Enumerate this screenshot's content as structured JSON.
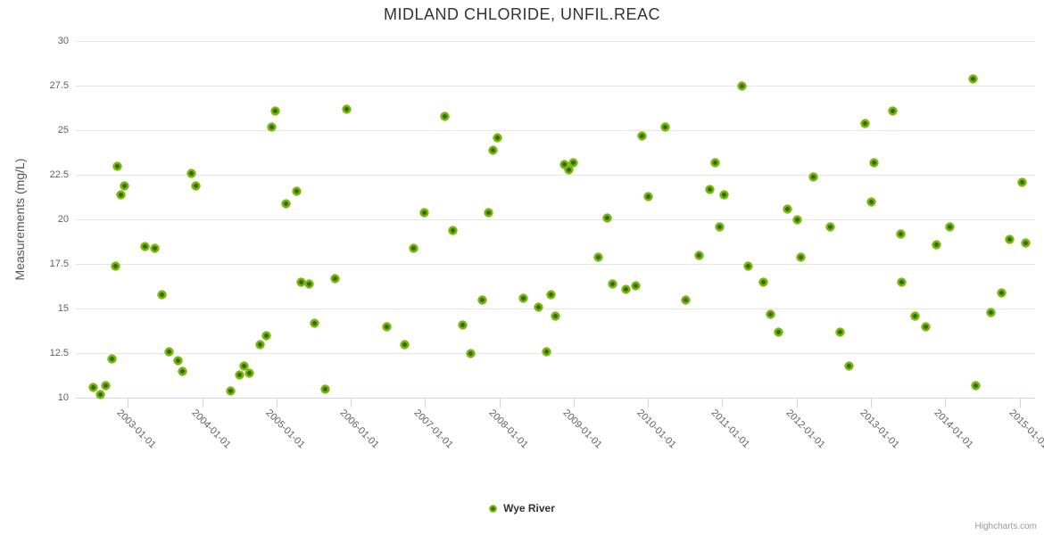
{
  "chart": {
    "title": "MIDLAND CHLORIDE, UNFIL.REAC",
    "y_axis_title": "Measurements (mg/L)",
    "legend_label": "Wye River",
    "credits": "Highcharts.com"
  },
  "colors": {
    "marker_outer": "#79b406",
    "marker_inner": "#2f6d0b",
    "grid": "#e6e6e6",
    "axis_line": "#ccd6eb",
    "title_text": "#333333",
    "axis_text": "#606060",
    "legend_text": "#333333",
    "credits_text": "#999999"
  },
  "chart_data": {
    "type": "scatter",
    "title": "MIDLAND CHLORIDE, UNFIL.REAC",
    "xlabel": "",
    "ylabel": "Measurements (mg/L)",
    "ylim": [
      10,
      30
    ],
    "y_ticks": [
      10,
      12.5,
      15,
      17.5,
      20,
      22.5,
      25,
      27.5,
      30
    ],
    "x_tick_years": [
      2003,
      2004,
      2005,
      2006,
      2007,
      2008,
      2009,
      2010,
      2011,
      2012,
      2013,
      2014,
      2015
    ],
    "x_tick_labels": [
      "2003-01-01",
      "2004-01-01",
      "2005-01-01",
      "2006-01-01",
      "2007-01-01",
      "2008-01-01",
      "2009-01-01",
      "2010-01-01",
      "2011-01-01",
      "2012-01-01",
      "2013-01-01",
      "2014-01-01",
      "2015-01-01"
    ],
    "xlim_years": [
      2002.3,
      2015.21
    ],
    "grid": true,
    "legend_position": "bottom-center",
    "series": [
      {
        "name": "Wye River",
        "marker_color": "#79b406",
        "points": [
          [
            2002.53,
            10.6
          ],
          [
            2002.63,
            10.2
          ],
          [
            2002.7,
            10.7
          ],
          [
            2002.78,
            12.2
          ],
          [
            2002.83,
            17.4
          ],
          [
            2002.86,
            23.0
          ],
          [
            2002.91,
            21.4
          ],
          [
            2002.95,
            21.9
          ],
          [
            2003.23,
            18.5
          ],
          [
            2003.36,
            18.4
          ],
          [
            2003.46,
            15.8
          ],
          [
            2003.55,
            12.6
          ],
          [
            2003.67,
            12.1
          ],
          [
            2003.74,
            11.5
          ],
          [
            2003.85,
            22.6
          ],
          [
            2003.91,
            21.9
          ],
          [
            2004.38,
            10.4
          ],
          [
            2004.5,
            11.3
          ],
          [
            2004.56,
            11.8
          ],
          [
            2004.64,
            11.4
          ],
          [
            2004.78,
            13.0
          ],
          [
            2004.86,
            13.5
          ],
          [
            2004.94,
            25.2
          ],
          [
            2004.98,
            26.1
          ],
          [
            2005.13,
            20.9
          ],
          [
            2005.27,
            21.6
          ],
          [
            2005.33,
            16.5
          ],
          [
            2005.44,
            16.4
          ],
          [
            2005.51,
            14.2
          ],
          [
            2005.65,
            10.5
          ],
          [
            2005.79,
            16.7
          ],
          [
            2005.95,
            26.2
          ],
          [
            2006.49,
            14.0
          ],
          [
            2006.72,
            13.0
          ],
          [
            2006.84,
            18.4
          ],
          [
            2006.99,
            20.4
          ],
          [
            2007.27,
            25.8
          ],
          [
            2007.37,
            19.4
          ],
          [
            2007.51,
            14.1
          ],
          [
            2007.61,
            12.5
          ],
          [
            2007.77,
            15.5
          ],
          [
            2007.85,
            20.4
          ],
          [
            2007.91,
            23.9
          ],
          [
            2007.97,
            24.6
          ],
          [
            2008.32,
            15.6
          ],
          [
            2008.53,
            15.1
          ],
          [
            2008.63,
            12.6
          ],
          [
            2008.69,
            15.8
          ],
          [
            2008.76,
            14.6
          ],
          [
            2008.88,
            23.1
          ],
          [
            2008.94,
            22.8
          ],
          [
            2008.99,
            23.2
          ],
          [
            2009.33,
            17.9
          ],
          [
            2009.45,
            20.1
          ],
          [
            2009.52,
            16.4
          ],
          [
            2009.7,
            16.1
          ],
          [
            2009.83,
            16.3
          ],
          [
            2009.92,
            24.7
          ],
          [
            2010.0,
            21.3
          ],
          [
            2010.23,
            25.2
          ],
          [
            2010.51,
            15.5
          ],
          [
            2010.69,
            18.0
          ],
          [
            2010.83,
            21.7
          ],
          [
            2010.9,
            23.2
          ],
          [
            2010.97,
            19.6
          ],
          [
            2011.02,
            21.4
          ],
          [
            2011.26,
            27.5
          ],
          [
            2011.35,
            17.4
          ],
          [
            2011.55,
            16.5
          ],
          [
            2011.65,
            14.7
          ],
          [
            2011.76,
            13.7
          ],
          [
            2011.88,
            20.6
          ],
          [
            2012.01,
            20.0
          ],
          [
            2012.06,
            17.9
          ],
          [
            2012.23,
            22.4
          ],
          [
            2012.45,
            19.6
          ],
          [
            2012.59,
            13.7
          ],
          [
            2012.71,
            11.8
          ],
          [
            2012.92,
            25.4
          ],
          [
            2013.0,
            21.0
          ],
          [
            2013.04,
            23.2
          ],
          [
            2013.29,
            26.1
          ],
          [
            2013.4,
            19.2
          ],
          [
            2013.41,
            16.5
          ],
          [
            2013.6,
            14.6
          ],
          [
            2013.74,
            14.0
          ],
          [
            2013.88,
            18.6
          ],
          [
            2014.06,
            19.6
          ],
          [
            2014.37,
            27.9
          ],
          [
            2014.41,
            10.7
          ],
          [
            2014.61,
            14.8
          ],
          [
            2014.76,
            15.9
          ],
          [
            2014.87,
            18.9
          ],
          [
            2015.03,
            22.1
          ],
          [
            2015.08,
            18.7
          ]
        ]
      }
    ]
  }
}
